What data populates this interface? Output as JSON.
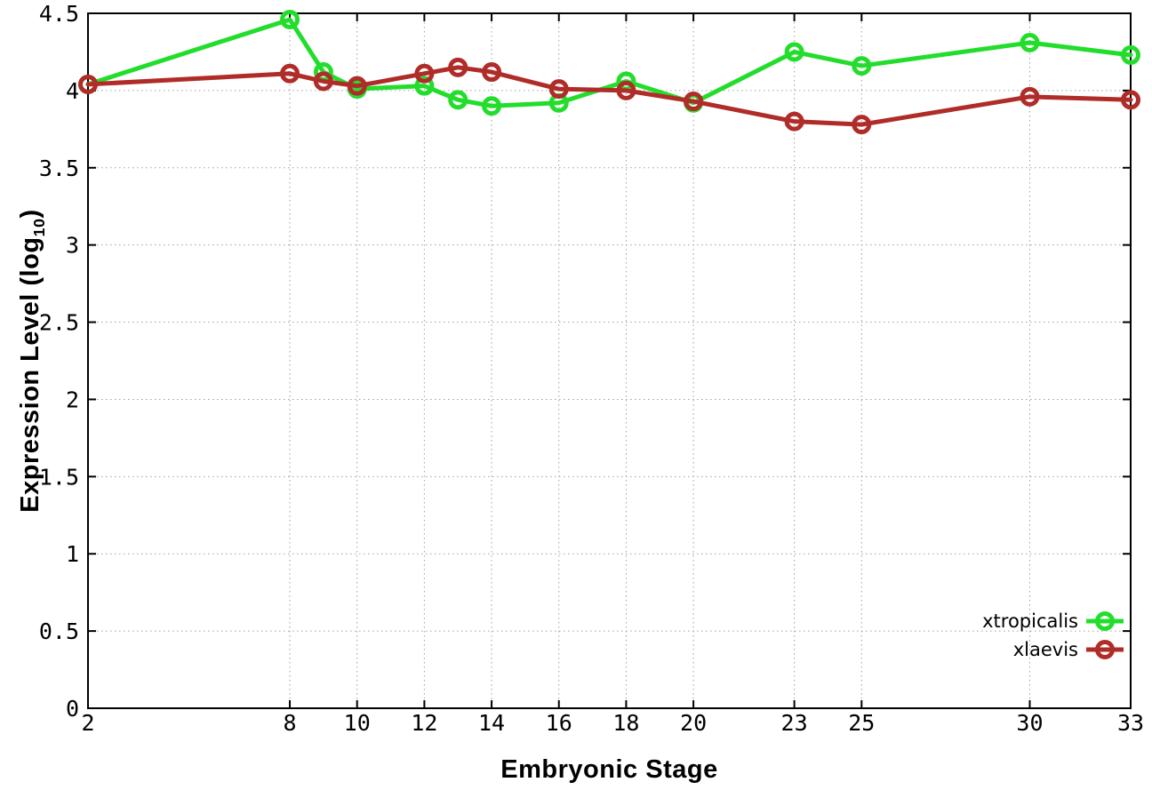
{
  "labels": {
    "xlabel": "Embryonic Stage",
    "ylabel_prefix": "Expression Level (log",
    "ylabel_sub": "10",
    "ylabel_suffix": ")"
  },
  "chart_data": {
    "type": "line",
    "title": "",
    "xlabel": "Embryonic Stage",
    "ylabel": "Expression Level (log10)",
    "x": [
      2,
      8,
      9,
      10,
      12,
      13,
      14,
      16,
      18,
      20,
      23,
      25,
      30,
      33
    ],
    "series": [
      {
        "name": "xtropicalis",
        "color": "#23dd2c",
        "values": [
          4.04,
          4.46,
          4.12,
          4.01,
          4.03,
          3.94,
          3.9,
          3.92,
          4.06,
          3.92,
          4.25,
          4.16,
          4.31,
          4.23
        ]
      },
      {
        "name": "xlaevis",
        "color": "#b02c28",
        "values": [
          4.04,
          4.11,
          4.06,
          4.03,
          4.11,
          4.15,
          4.12,
          4.01,
          4.0,
          3.93,
          3.8,
          3.78,
          3.96,
          3.94
        ]
      }
    ],
    "xlim": [
      2,
      33
    ],
    "ylim": [
      0,
      4.5
    ],
    "xticks": [
      2,
      8,
      10,
      12,
      14,
      16,
      18,
      20,
      23,
      25,
      30,
      33
    ],
    "xtick_labels": [
      "2",
      "8",
      "10",
      "12",
      "14",
      "16",
      "18",
      "20",
      "23",
      "25",
      "30",
      "33"
    ],
    "yticks": [
      0,
      0.5,
      1,
      1.5,
      2,
      2.5,
      3,
      3.5,
      4,
      4.5
    ],
    "ytick_labels": [
      "0",
      "0.5",
      "1",
      "1.5",
      "2",
      "2.5",
      "3",
      "3.5",
      "4",
      "4.5"
    ],
    "grid": true,
    "grid_color": "#a0a0a0",
    "border_color": "#000000",
    "background": "#ffffff",
    "marker": "open-circle",
    "legend_position": "bottom-right",
    "legend_entries": [
      "xtropicalis",
      "xlaevis"
    ]
  }
}
